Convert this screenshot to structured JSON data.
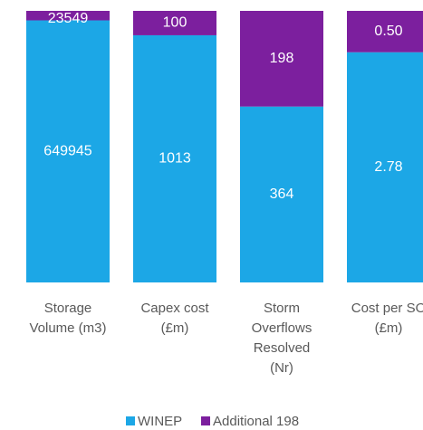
{
  "chart_data": {
    "type": "bar",
    "stacked": "percent",
    "categories": [
      [
        "Storage",
        "Volume (m3)"
      ],
      [
        "Capex cost",
        "(£m)"
      ],
      [
        "Storm",
        "Overflows",
        "Resolved",
        "(Nr)"
      ],
      [
        "Cost per SO",
        "(£m)"
      ]
    ],
    "series": [
      {
        "name": "WINEP",
        "color": "#1ca7e6",
        "values": [
          649945,
          1013,
          364,
          2.78
        ],
        "labels": [
          "649945",
          "1013",
          "364",
          "2.78"
        ]
      },
      {
        "name": "Additional 198",
        "color": "#7c1f9e",
        "values": [
          23549,
          100,
          198,
          0.5
        ],
        "labels": [
          "23549",
          "100",
          "198",
          "0.50"
        ]
      }
    ],
    "legend_position": "bottom",
    "grid": false,
    "axis_visible": false
  }
}
